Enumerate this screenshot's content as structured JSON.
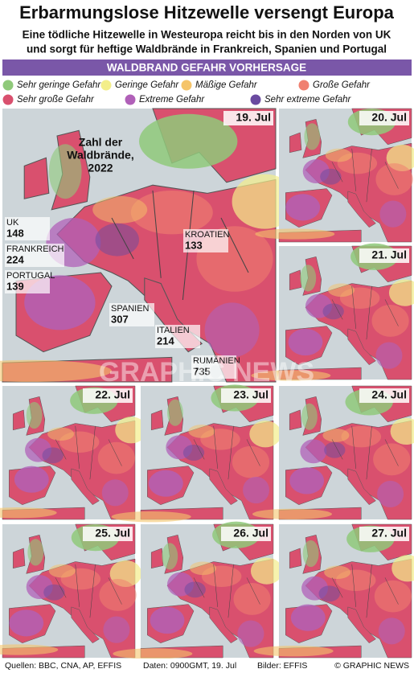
{
  "header": {
    "title": "Erbarmungslose Hitzewelle versengt Europa",
    "subtitle": [
      "Eine tödliche Hitzewelle in Westeuropa reicht bis in den Norden von UK",
      "und sorgt für heftige Waldbrände in Frankreich, Spanien und Portugal"
    ]
  },
  "banner": "WALDBRAND GEFAHR VORHERSAGE",
  "legend": [
    {
      "label": "Sehr geringe Gefahr",
      "color": "#8fc97a"
    },
    {
      "label": "Geringe Gefahr",
      "color": "#f3ee8a"
    },
    {
      "label": "Mäßige Gefahr",
      "color": "#f5c46a"
    },
    {
      "label": "Große Gefahr",
      "color": "#f08070"
    },
    {
      "label": "Sehr große Gefahr",
      "color": "#d9506e"
    },
    {
      "label": "Extreme Gefahr",
      "color": "#b060b8"
    },
    {
      "label": "Sehr extreme Gefahr",
      "color": "#6a4aa0"
    }
  ],
  "main_map": {
    "date": "19. Jul",
    "caption": [
      "Zahl der",
      "Waldbrände,",
      "2022"
    ],
    "countries": [
      {
        "name": "UK",
        "fires": 148
      },
      {
        "name": "FRANKREICH",
        "fires": 224
      },
      {
        "name": "PORTUGAL",
        "fires": 139
      },
      {
        "name": "SPANIEN",
        "fires": 307
      },
      {
        "name": "ITALIEN",
        "fires": 214
      },
      {
        "name": "KROATIEN",
        "fires": 133
      },
      {
        "name": "RUMÄNIEN",
        "fires": 735
      }
    ]
  },
  "maps": [
    {
      "date": "20. Jul"
    },
    {
      "date": "21. Jul"
    },
    {
      "date": "22. Jul"
    },
    {
      "date": "23. Jul"
    },
    {
      "date": "24. Jul"
    },
    {
      "date": "25. Jul"
    },
    {
      "date": "26. Jul"
    },
    {
      "date": "27. Jul"
    }
  ],
  "watermark": "GRAPHIC NEWS",
  "footer": {
    "sources": "Quellen: BBC, CNA, AP, EFFIS",
    "data": "Daten: 0900GMT, 19. Jul",
    "images": "Bilder: EFFIS",
    "credit": "© GRAPHIC NEWS"
  }
}
